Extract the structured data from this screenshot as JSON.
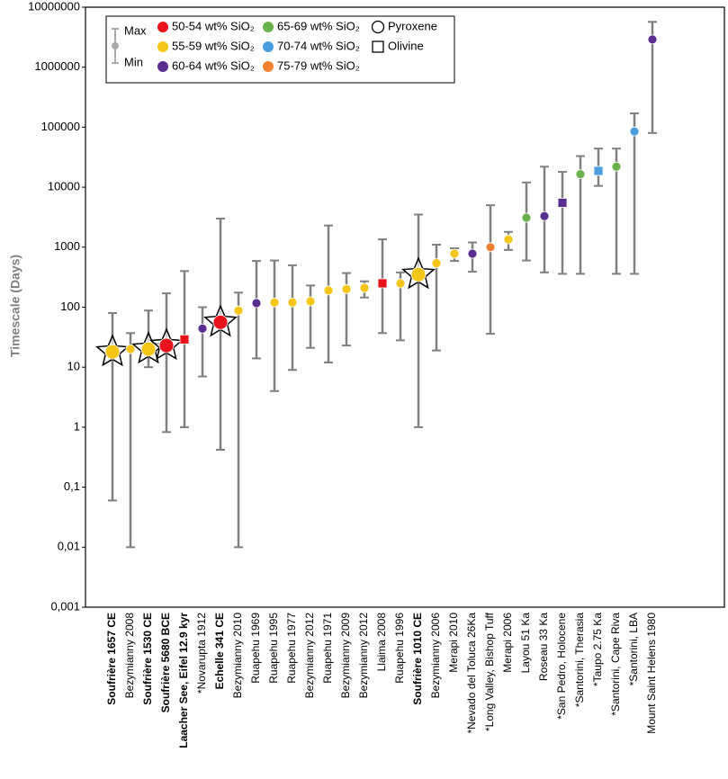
{
  "chart_data": {
    "type": "errorbar",
    "ylabel": "Timescale (Days)",
    "log_scale": true,
    "ylim": [
      0.001,
      10000000
    ],
    "yticks": [
      {
        "value": 0.001,
        "label": "0,001"
      },
      {
        "value": 0.01,
        "label": "0,01"
      },
      {
        "value": 0.1,
        "label": "0,1"
      },
      1,
      10,
      100,
      1000,
      10000,
      100000,
      1000000,
      10000000
    ],
    "categories": [
      "Soufrière 1657 CE",
      "Bezymianny 2008",
      "Soufrière 1530 CE",
      "Soufrière 5680 BCE",
      "Laacher See, Eifel 12.9 kyr",
      "*Novarupta 1912",
      "Echelle 341 CE",
      "Bezymianny 2010",
      "Ruapehu 1969",
      "Ruapehu 1995",
      "Ruapehu 1977",
      "Bezymianny 2012",
      "Ruapehu 1971",
      "Bezymianny 2009",
      "Bezymianny 2012",
      "Llaima 2008",
      "Ruapehu 1996",
      "Soufrière 1010 CE",
      "Bezymianny 2006",
      "Merapi 2010",
      "*Nevado del Toluca 26Ka",
      "*Long Valley, Bishop Tuff",
      "Merapi 2006",
      "Layou 51 Ka",
      "Roseau 33 Ka",
      "*San Pedro, Holocene",
      "*Santorini, Therasia",
      "*Taupo 2.75 Ka",
      "*Santorini, Cape Riva",
      "*Santorini, LBA",
      "Mount Saint Helens 1980"
    ],
    "bold": [
      true,
      false,
      true,
      true,
      true,
      false,
      true,
      false,
      false,
      false,
      false,
      false,
      false,
      false,
      false,
      false,
      false,
      true,
      false,
      false,
      false,
      false,
      false,
      false,
      false,
      false,
      false,
      false,
      false,
      false,
      false
    ],
    "values": [
      18,
      20,
      20,
      23,
      29,
      44,
      56,
      88,
      117,
      120,
      120,
      125,
      190,
      200,
      210,
      250,
      250,
      350,
      540,
      780,
      780,
      1000,
      1350,
      3100,
      3300,
      5500,
      16500,
      18700,
      22000,
      85000,
      2900000
    ],
    "min": [
      0.06,
      0.01,
      10,
      0.83,
      1,
      7,
      0.42,
      0.01,
      14,
      4,
      9,
      21,
      12,
      23,
      145,
      37,
      28,
      1,
      19,
      590,
      390,
      36,
      900,
      600,
      380,
      360,
      360,
      10500,
      360,
      360,
      80000
    ],
    "max": [
      80,
      37,
      88,
      170,
      400,
      100,
      3000,
      175,
      590,
      600,
      500,
      230,
      2300,
      370,
      270,
      1350,
      380,
      3500,
      1100,
      960,
      1200,
      5000,
      1800,
      12000,
      22000,
      18000,
      33000,
      44000,
      44000,
      170000,
      5700000
    ],
    "colors": [
      "#f5c518",
      "#f5c518",
      "#f5c518",
      "#e8131b",
      "#e8131b",
      "#5a2d91",
      "#e8131b",
      "#f5c518",
      "#5a2d91",
      "#f5c518",
      "#f5c518",
      "#f5c518",
      "#f5c518",
      "#f5c518",
      "#f5c518",
      "#e8131b",
      "#f5c518",
      "#f5c518",
      "#f5c518",
      "#f5c518",
      "#5a2d91",
      "#f07f2f",
      "#f5c518",
      "#6ab04c",
      "#5a2d91",
      "#5a2d91",
      "#6ab04c",
      "#4a9ee0",
      "#6ab04c",
      "#4a9ee0",
      "#5a2d91"
    ],
    "markers": [
      "circle",
      "circle",
      "circle",
      "circle",
      "square",
      "circle",
      "circle",
      "circle",
      "circle",
      "circle",
      "circle",
      "circle",
      "circle",
      "circle",
      "circle",
      "square",
      "circle",
      "circle",
      "circle",
      "circle",
      "circle",
      "circle",
      "circle",
      "circle",
      "circle",
      "square",
      "circle",
      "square",
      "circle",
      "circle",
      "circle"
    ],
    "star": [
      true,
      false,
      true,
      true,
      false,
      false,
      true,
      false,
      false,
      false,
      false,
      false,
      false,
      false,
      false,
      false,
      false,
      true,
      false,
      false,
      false,
      false,
      false,
      false,
      false,
      false,
      false,
      false,
      false,
      false,
      false
    ],
    "legend": {
      "max_label": "Max",
      "min_label": "Min",
      "groups": [
        {
          "name": "50-54 wt% SiO₂",
          "color": "#e8131b"
        },
        {
          "name": "55-59 wt% SiO₂",
          "color": "#f5c518"
        },
        {
          "name": "60-64 wt% SiO₂",
          "color": "#5a2d91"
        },
        {
          "name": "65-69 wt% SiO₂",
          "color": "#6ab04c"
        },
        {
          "name": "70-74 wt% SiO₂",
          "color": "#4a9ee0"
        },
        {
          "name": "75-79 wt% SiO₂",
          "color": "#f07f2f"
        }
      ],
      "shapes": [
        {
          "name": "Pyroxene",
          "marker": "circle"
        },
        {
          "name": "Olivine",
          "marker": "square"
        }
      ]
    }
  }
}
